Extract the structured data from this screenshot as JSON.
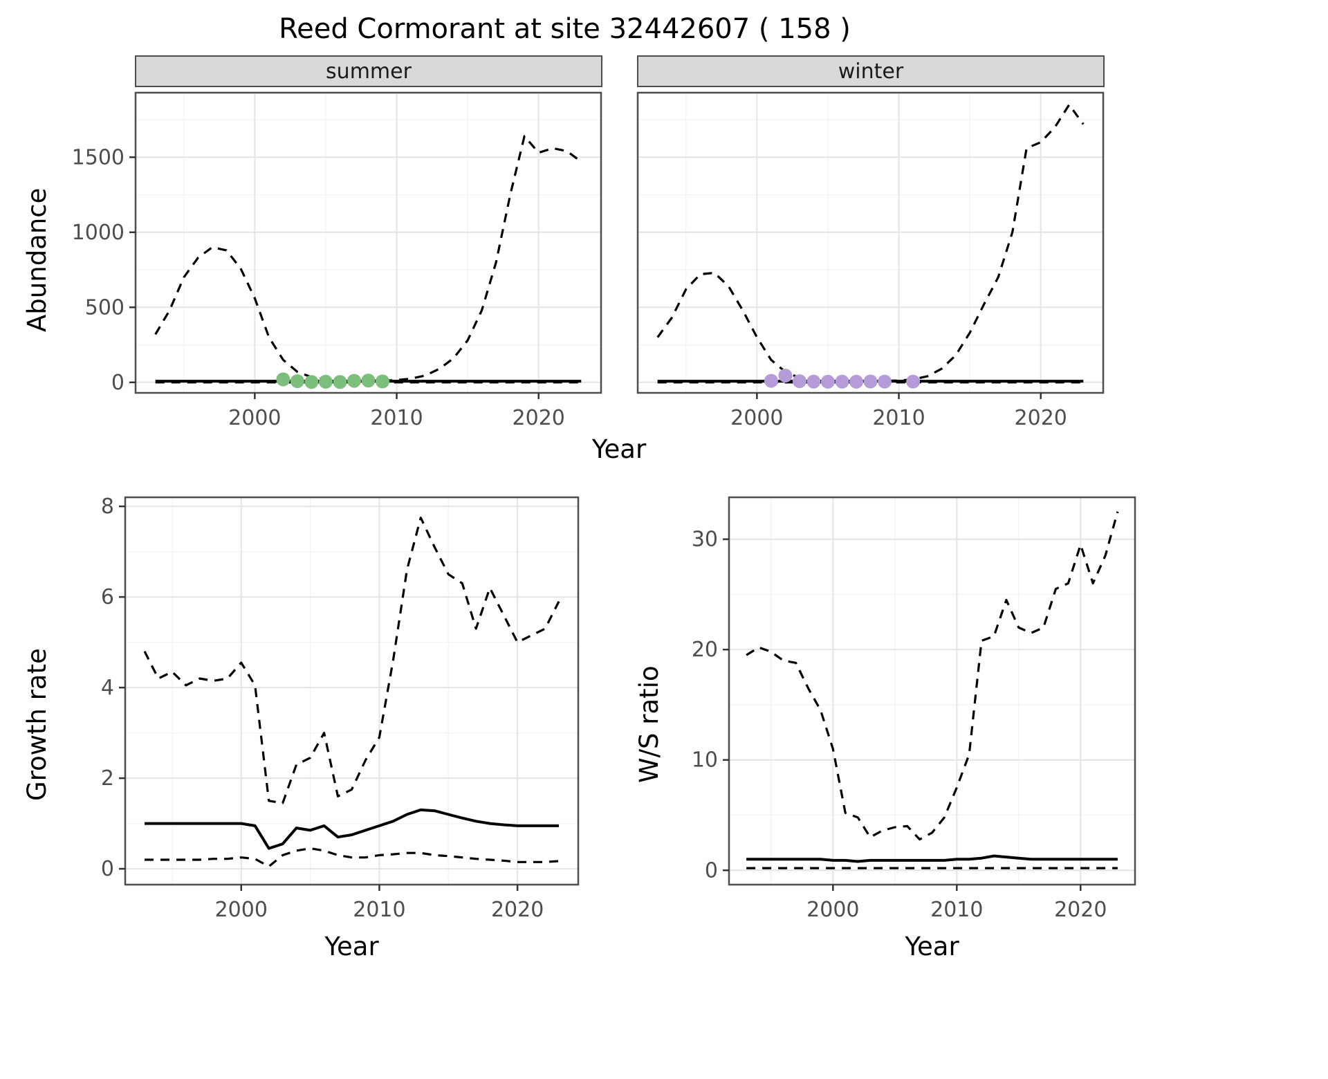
{
  "title": "Reed Cormorant at site 32442607 ( 158 )",
  "colors": {
    "summer_points": "#7CBE7C",
    "winter_points": "#B79BD8",
    "line": "#000000",
    "strip_bg": "#D9D9D9",
    "grid_major": "#E4E4E4",
    "grid_minor": "#F3F3F3",
    "panel_border": "#4D4D4D",
    "tick_text": "#4D4D4D"
  },
  "chart_data": [
    {
      "id": "summer-abundance",
      "type": "line",
      "facet": "summer",
      "xlabel": "Year",
      "ylabel": "Abundance",
      "xlim": [
        1991.6,
        2024.4
      ],
      "ylim": [
        -70,
        1930
      ],
      "xticks": [
        2000,
        2010,
        2020
      ],
      "yticks": [
        0,
        500,
        1000,
        1500
      ],
      "x": [
        1993,
        1994,
        1995,
        1996,
        1997,
        1998,
        1999,
        2000,
        2001,
        2002,
        2003,
        2004,
        2005,
        2006,
        2007,
        2008,
        2009,
        2010,
        2011,
        2012,
        2013,
        2014,
        2015,
        2016,
        2017,
        2018,
        2019,
        2020,
        2021,
        2022,
        2023
      ],
      "series": [
        {
          "name": "upper-ci",
          "style": "dashed",
          "values": [
            320,
            480,
            700,
            830,
            900,
            880,
            760,
            560,
            300,
            150,
            70,
            35,
            20,
            15,
            12,
            12,
            12,
            15,
            25,
            45,
            90,
            160,
            280,
            480,
            800,
            1250,
            1640,
            1530,
            1560,
            1540,
            1470
          ]
        },
        {
          "name": "lower-ci",
          "style": "dashed",
          "values": [
            0,
            0,
            0,
            0,
            0,
            0,
            0,
            0,
            0,
            0,
            0,
            0,
            0,
            0,
            0,
            0,
            0,
            0,
            0,
            0,
            0,
            0,
            0,
            0,
            0,
            0,
            0,
            0,
            0,
            0,
            0
          ]
        },
        {
          "name": "estimate",
          "style": "solid",
          "values": [
            8,
            8,
            8,
            8,
            8,
            8,
            8,
            8,
            8,
            8,
            8,
            8,
            8,
            8,
            8,
            8,
            8,
            8,
            8,
            8,
            8,
            8,
            8,
            8,
            8,
            8,
            8,
            8,
            8,
            8,
            8
          ]
        }
      ],
      "points": {
        "name": "observed-count",
        "color_key": "summer_points",
        "x": [
          2002,
          2003,
          2004,
          2005,
          2006,
          2007,
          2008,
          2009
        ],
        "y": [
          20,
          8,
          3,
          4,
          3,
          10,
          12,
          6
        ]
      }
    },
    {
      "id": "winter-abundance",
      "type": "line",
      "facet": "winter",
      "xlabel": "Year",
      "ylabel": "Abundance",
      "xlim": [
        1991.6,
        2024.4
      ],
      "ylim": [
        -70,
        1930
      ],
      "xticks": [
        2000,
        2010,
        2020
      ],
      "yticks": [
        0,
        500,
        1000,
        1500
      ],
      "x": [
        1993,
        1994,
        1995,
        1996,
        1997,
        1998,
        1999,
        2000,
        2001,
        2002,
        2003,
        2004,
        2005,
        2006,
        2007,
        2008,
        2009,
        2010,
        2011,
        2012,
        2013,
        2014,
        2015,
        2016,
        2017,
        2018,
        2019,
        2020,
        2021,
        2022,
        2023
      ],
      "series": [
        {
          "name": "upper-ci",
          "style": "dashed",
          "values": [
            300,
            430,
            620,
            720,
            730,
            640,
            480,
            300,
            150,
            70,
            30,
            15,
            10,
            8,
            8,
            8,
            10,
            12,
            20,
            40,
            90,
            180,
            330,
            520,
            700,
            1000,
            1560,
            1600,
            1700,
            1850,
            1720
          ]
        },
        {
          "name": "lower-ci",
          "style": "dashed",
          "values": [
            0,
            0,
            0,
            0,
            0,
            0,
            0,
            0,
            0,
            0,
            0,
            0,
            0,
            0,
            0,
            0,
            0,
            0,
            0,
            0,
            0,
            0,
            0,
            0,
            0,
            0,
            0,
            0,
            0,
            0,
            0
          ]
        },
        {
          "name": "estimate",
          "style": "solid",
          "values": [
            8,
            8,
            8,
            8,
            8,
            8,
            8,
            8,
            8,
            8,
            8,
            8,
            8,
            8,
            8,
            8,
            8,
            8,
            8,
            8,
            8,
            8,
            8,
            8,
            8,
            8,
            8,
            8,
            8,
            8,
            8
          ]
        }
      ],
      "points": {
        "name": "observed-count",
        "color_key": "winter_points",
        "x": [
          2001,
          2002,
          2003,
          2004,
          2005,
          2006,
          2007,
          2008,
          2009,
          2011
        ],
        "y": [
          10,
          45,
          8,
          5,
          4,
          5,
          4,
          6,
          5,
          5
        ]
      }
    },
    {
      "id": "growth-rate",
      "type": "line",
      "facet": null,
      "xlabel": "Year",
      "ylabel": "Growth rate",
      "xlim": [
        1991.6,
        2024.4
      ],
      "ylim": [
        -0.35,
        8.2
      ],
      "xticks": [
        2000,
        2010,
        2020
      ],
      "yticks": [
        0,
        2,
        4,
        6,
        8
      ],
      "x": [
        1993,
        1994,
        1995,
        1996,
        1997,
        1998,
        1999,
        2000,
        2001,
        2002,
        2003,
        2004,
        2005,
        2006,
        2007,
        2008,
        2009,
        2010,
        2011,
        2012,
        2013,
        2014,
        2015,
        2016,
        2017,
        2018,
        2019,
        2020,
        2021,
        2022,
        2023
      ],
      "series": [
        {
          "name": "upper-ci",
          "style": "dashed",
          "values": [
            4.8,
            4.2,
            4.35,
            4.05,
            4.2,
            4.15,
            4.2,
            4.55,
            4.05,
            1.5,
            1.45,
            2.3,
            2.45,
            3.0,
            1.6,
            1.75,
            2.4,
            2.9,
            4.6,
            6.6,
            7.75,
            7.1,
            6.5,
            6.3,
            5.3,
            6.2,
            5.6,
            5.0,
            5.15,
            5.3,
            5.9
          ]
        },
        {
          "name": "lower-ci",
          "style": "dashed",
          "values": [
            0.2,
            0.2,
            0.2,
            0.2,
            0.2,
            0.22,
            0.22,
            0.25,
            0.22,
            0.05,
            0.3,
            0.4,
            0.45,
            0.4,
            0.3,
            0.25,
            0.25,
            0.3,
            0.32,
            0.35,
            0.35,
            0.3,
            0.28,
            0.25,
            0.22,
            0.2,
            0.18,
            0.15,
            0.15,
            0.15,
            0.17
          ]
        },
        {
          "name": "estimate",
          "style": "solid",
          "values": [
            1.0,
            1.0,
            1.0,
            1.0,
            1.0,
            1.0,
            1.0,
            1.0,
            0.95,
            0.45,
            0.55,
            0.9,
            0.85,
            0.95,
            0.7,
            0.75,
            0.85,
            0.95,
            1.05,
            1.2,
            1.3,
            1.28,
            1.2,
            1.12,
            1.05,
            1.0,
            0.97,
            0.95,
            0.95,
            0.95,
            0.95
          ]
        }
      ],
      "points": null
    },
    {
      "id": "ws-ratio",
      "type": "line",
      "facet": null,
      "xlabel": "Year",
      "ylabel": "W/S ratio",
      "xlim": [
        1991.6,
        2024.4
      ],
      "ylim": [
        -1.3,
        33.8
      ],
      "xticks": [
        2000,
        2010,
        2020
      ],
      "yticks": [
        0,
        10,
        20,
        30
      ],
      "x": [
        1993,
        1994,
        1995,
        1996,
        1997,
        1998,
        1999,
        2000,
        2001,
        2002,
        2003,
        2004,
        2005,
        2006,
        2007,
        2008,
        2009,
        2010,
        2011,
        2012,
        2013,
        2014,
        2015,
        2016,
        2017,
        2018,
        2019,
        2020,
        2021,
        2022,
        2023
      ],
      "series": [
        {
          "name": "upper-ci",
          "style": "dashed",
          "values": [
            19.5,
            20.2,
            19.8,
            19.0,
            18.8,
            16.5,
            14.5,
            11.0,
            5.2,
            4.8,
            3.0,
            3.6,
            3.9,
            4.0,
            2.8,
            3.4,
            4.8,
            7.5,
            10.5,
            20.8,
            21.2,
            24.5,
            22.0,
            21.5,
            22.0,
            25.5,
            26.0,
            29.5,
            26.0,
            28.5,
            32.5
          ]
        },
        {
          "name": "lower-ci",
          "style": "dashed",
          "values": [
            0.2,
            0.2,
            0.2,
            0.2,
            0.2,
            0.2,
            0.2,
            0.2,
            0.2,
            0.2,
            0.2,
            0.2,
            0.2,
            0.2,
            0.2,
            0.2,
            0.2,
            0.2,
            0.2,
            0.2,
            0.2,
            0.2,
            0.2,
            0.2,
            0.2,
            0.2,
            0.2,
            0.2,
            0.2,
            0.2,
            0.2
          ]
        },
        {
          "name": "estimate",
          "style": "solid",
          "values": [
            1.0,
            1.0,
            1.0,
            1.0,
            1.0,
            1.0,
            1.0,
            0.9,
            0.9,
            0.8,
            0.9,
            0.9,
            0.9,
            0.9,
            0.9,
            0.9,
            0.9,
            1.0,
            1.0,
            1.1,
            1.3,
            1.2,
            1.1,
            1.0,
            1.0,
            1.0,
            1.0,
            1.0,
            1.0,
            1.0,
            1.0
          ]
        }
      ],
      "points": null
    }
  ]
}
